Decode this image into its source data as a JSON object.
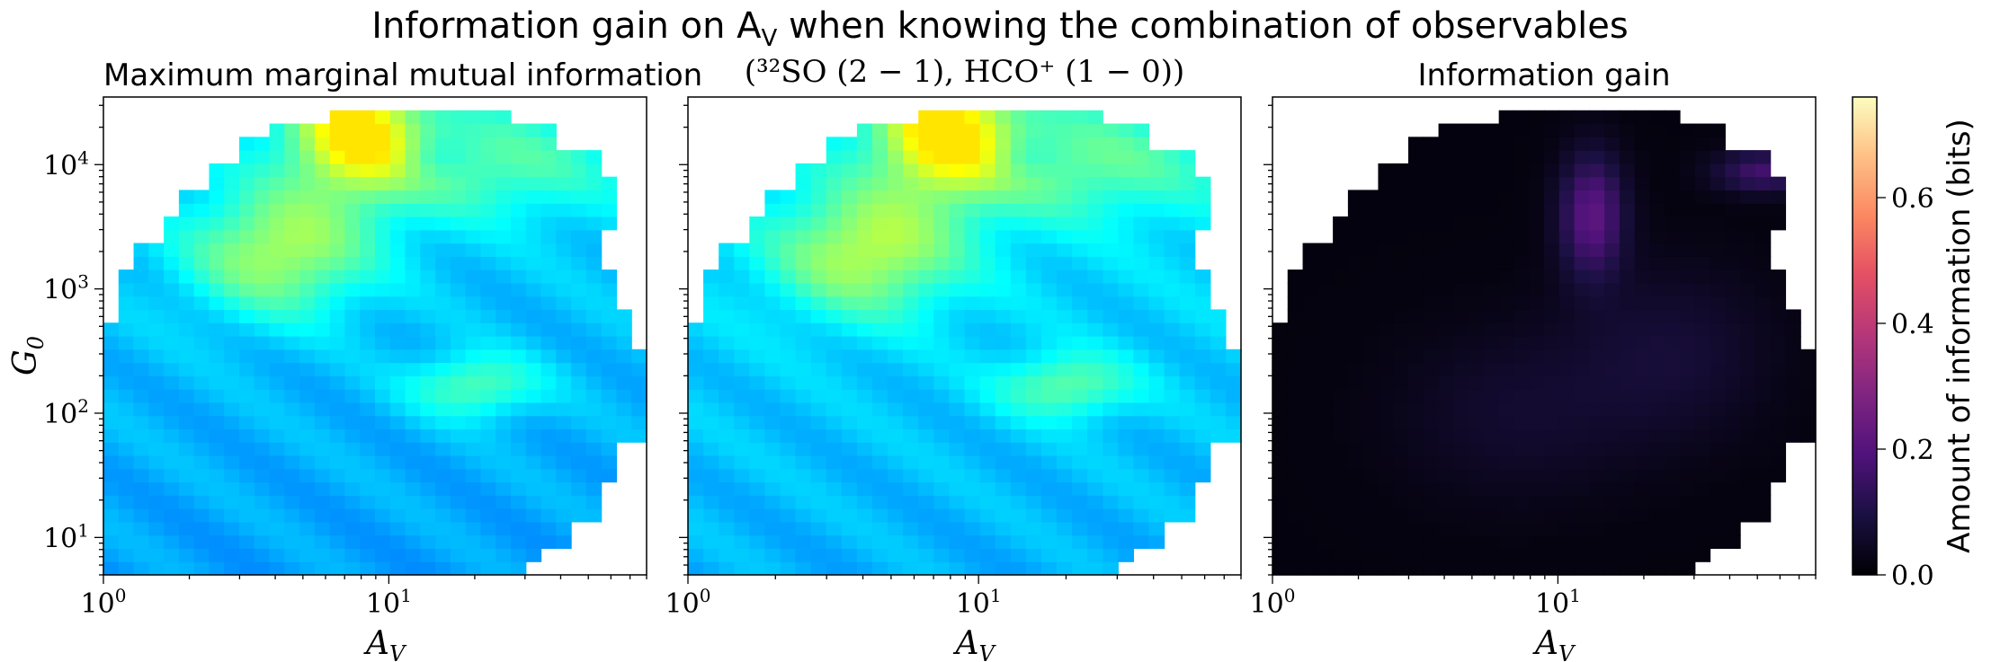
{
  "suptitle": {
    "text": "Information gain on A",
    "sub": "V",
    "rest": " when knowing the combination of observables"
  },
  "combination_title": "(³²SO (2 − 1), HCO⁺ (1 − 0))",
  "colorbar": {
    "label": "Amount of information (bits)",
    "ticks": [
      "0.0",
      "0.2",
      "0.4",
      "0.6"
    ],
    "range": [
      0,
      0.76
    ],
    "colormap": "magma"
  },
  "chart_data": [
    {
      "type": "heatmap",
      "title": "Maximum marginal mutual information",
      "xlabel": "A_V",
      "ylabel": "G_0",
      "xscale": "log",
      "yscale": "log",
      "xlim": [
        1,
        80
      ],
      "ylim": [
        5,
        35000
      ],
      "xticks": [
        "10^0",
        "10^1"
      ],
      "yticks": [
        "10^1",
        "10^2",
        "10^3",
        "10^4"
      ],
      "colormap": "jet",
      "value_range_bits": [
        0.0,
        0.45
      ],
      "regions": [
        {
          "label": "peak near A_V≈8, G_0≈2×10^4",
          "value": 0.42
        },
        {
          "label": "band A_V 3–8, G_0 10^3–10^4",
          "value": 0.33
        },
        {
          "label": "lobe A_V≈20, G_0≈150",
          "value": 0.28
        },
        {
          "label": "lower region G_0<50",
          "value": 0.12
        }
      ]
    },
    {
      "type": "heatmap",
      "title": "(³²SO (2 − 1), HCO⁺ (1 − 0))",
      "xlabel": "A_V",
      "xscale": "log",
      "yscale": "log",
      "xlim": [
        1,
        80
      ],
      "ylim": [
        5,
        35000
      ],
      "xticks": [
        "10^0",
        "10^1"
      ],
      "colormap": "jet",
      "value_range_bits": [
        0.0,
        0.45
      ],
      "regions": [
        {
          "label": "peak near A_V≈8, G_0≈2×10^4",
          "value": 0.42
        },
        {
          "label": "band A_V 3–8, G_0 10^3–10^4",
          "value": 0.34
        },
        {
          "label": "lobe A_V≈20, G_0≈150",
          "value": 0.29
        },
        {
          "label": "lower region G_0<50",
          "value": 0.13
        }
      ]
    },
    {
      "type": "heatmap",
      "title": "Information gain",
      "xlabel": "A_V",
      "xscale": "log",
      "yscale": "log",
      "xlim": [
        1,
        80
      ],
      "ylim": [
        5,
        35000
      ],
      "xticks": [
        "10^0",
        "10^1"
      ],
      "colormap": "magma",
      "value_range_bits": [
        0.0,
        0.76
      ],
      "regions": [
        {
          "label": "ridge near A_V≈15, G_0≈3×10^3",
          "value": 0.22
        },
        {
          "label": "top-right A_V≈50, G_0≈10^4",
          "value": 0.2
        },
        {
          "label": "background",
          "value": 0.02
        }
      ]
    }
  ]
}
